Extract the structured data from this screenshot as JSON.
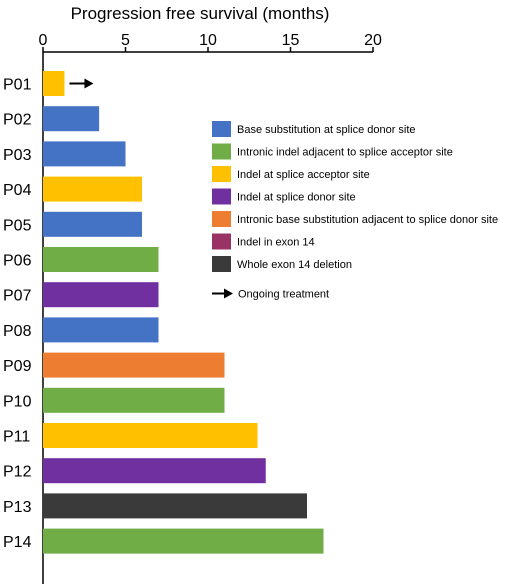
{
  "chart_data": {
    "type": "bar",
    "orientation": "horizontal",
    "title": "Progression free survival (months)",
    "x_axis_position": "top",
    "xlim": [
      0,
      20
    ],
    "xticks": [
      0,
      5,
      10,
      15,
      20
    ],
    "grid": false,
    "legend_position": "right",
    "categories": [
      "P01",
      "P02",
      "P03",
      "P04",
      "P05",
      "P06",
      "P07",
      "P08",
      "P09",
      "P10",
      "P11",
      "P12",
      "P13",
      "P14"
    ],
    "values": [
      1.3,
      3.4,
      5.0,
      6.0,
      6.0,
      7.0,
      7.0,
      7.0,
      11.0,
      11.0,
      13.0,
      13.5,
      16.0,
      17.0
    ],
    "groups": [
      "Indel at splice acceptor site",
      "Base substitution at splice donor site",
      "Base substitution at splice donor site",
      "Indel at splice acceptor site",
      "Base substitution at splice donor site",
      "Intronic indel adjacent to splice acceptor site",
      "Indel at splice donor site",
      "Base substitution at splice donor site",
      "Intronic base substitution adjacent to splice donor site",
      "Intronic indel adjacent to splice acceptor site",
      "Indel at splice acceptor site",
      "Indel at splice donor site",
      "Whole exon 14 deletion",
      "Intronic indel adjacent to splice acceptor site"
    ],
    "ongoing": [
      true,
      false,
      false,
      false,
      false,
      false,
      false,
      false,
      false,
      false,
      false,
      false,
      false,
      false
    ],
    "legend": [
      {
        "label": "Base substitution at splice donor site",
        "color": "#4472c4"
      },
      {
        "label": "Intronic indel adjacent to splice acceptor site",
        "color": "#70ad47"
      },
      {
        "label": "Indel at splice acceptor site",
        "color": "#ffc000"
      },
      {
        "label": "Indel at splice donor site",
        "color": "#7030a0"
      },
      {
        "label": "Intronic base substitution adjacent to splice donor site",
        "color": "#ed7d31"
      },
      {
        "label": "Indel in exon 14",
        "color": "#993366"
      },
      {
        "label": "Whole exon 14 deletion",
        "color": "#3a3a3a"
      }
    ],
    "ongoing_label": "Ongoing treatment"
  }
}
